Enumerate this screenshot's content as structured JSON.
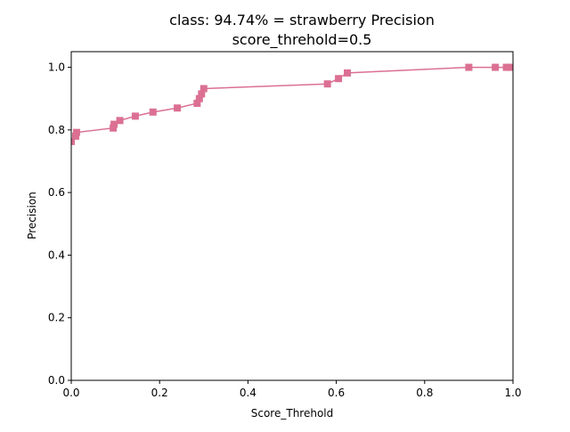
{
  "chart_data": {
    "type": "line",
    "title": "class: 94.74% = strawberry Precision",
    "subtitle": "score_threhold=0.5",
    "xlabel": "Score_Threhold",
    "ylabel": "Precision",
    "xlim": [
      0.0,
      1.0
    ],
    "ylim": [
      0.0,
      1.05
    ],
    "xticks": [
      "0.0",
      "0.2",
      "0.4",
      "0.6",
      "0.8",
      "1.0"
    ],
    "yticks": [
      "0.0",
      "0.2",
      "0.4",
      "0.6",
      "0.8",
      "1.0"
    ],
    "grid": false,
    "legend": "none",
    "series": [
      {
        "color": "#db7093",
        "marker": "square",
        "x": [
          0.0,
          0.01,
          0.012,
          0.095,
          0.097,
          0.11,
          0.145,
          0.185,
          0.24,
          0.285,
          0.29,
          0.295,
          0.3,
          0.58,
          0.605,
          0.625,
          0.9,
          0.96,
          0.985,
          0.995
        ],
        "y": [
          0.763,
          0.78,
          0.792,
          0.806,
          0.818,
          0.83,
          0.844,
          0.857,
          0.87,
          0.885,
          0.9,
          0.915,
          0.932,
          0.947,
          0.964,
          0.982,
          1.0,
          1.0,
          1.0,
          1.0
        ]
      }
    ]
  }
}
